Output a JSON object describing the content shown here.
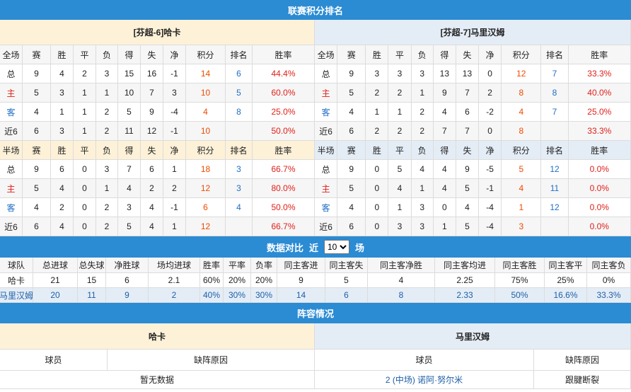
{
  "header": {
    "title": "联赛积分排名"
  },
  "standings": {
    "teams": [
      {
        "title": "[芬超-6]哈卡",
        "sections": [
          {
            "columns": [
              "全场",
              "赛",
              "胜",
              "平",
              "负",
              "得",
              "失",
              "净",
              "积分",
              "排名",
              "胜率"
            ],
            "rows": [
              [
                "总",
                "9",
                "4",
                "2",
                "3",
                "15",
                "16",
                "-1",
                "14",
                "6",
                "44.4%"
              ],
              [
                "主",
                "5",
                "3",
                "1",
                "1",
                "10",
                "7",
                "3",
                "10",
                "5",
                "60.0%"
              ],
              [
                "客",
                "4",
                "1",
                "1",
                "2",
                "5",
                "9",
                "-4",
                "4",
                "8",
                "25.0%"
              ],
              [
                "近6",
                "6",
                "3",
                "1",
                "2",
                "11",
                "12",
                "-1",
                "10",
                null,
                "50.0%"
              ]
            ]
          },
          {
            "columns": [
              "半场",
              "赛",
              "胜",
              "平",
              "负",
              "得",
              "失",
              "净",
              "积分",
              "排名",
              "胜率"
            ],
            "rows": [
              [
                "总",
                "9",
                "6",
                "0",
                "3",
                "7",
                "6",
                "1",
                "18",
                "3",
                "66.7%"
              ],
              [
                "主",
                "5",
                "4",
                "0",
                "1",
                "4",
                "2",
                "2",
                "12",
                "3",
                "80.0%"
              ],
              [
                "客",
                "4",
                "2",
                "0",
                "2",
                "3",
                "4",
                "-1",
                "6",
                "4",
                "50.0%"
              ],
              [
                "近6",
                "6",
                "4",
                "0",
                "2",
                "5",
                "4",
                "1",
                "12",
                null,
                "66.7%"
              ]
            ]
          }
        ]
      },
      {
        "title": "[芬超-7]马里汉姆",
        "sections": [
          {
            "columns": [
              "全场",
              "赛",
              "胜",
              "平",
              "负",
              "得",
              "失",
              "净",
              "积分",
              "排名",
              "胜率"
            ],
            "rows": [
              [
                "总",
                "9",
                "3",
                "3",
                "3",
                "13",
                "13",
                "0",
                "12",
                "7",
                "33.3%"
              ],
              [
                "主",
                "5",
                "2",
                "2",
                "1",
                "9",
                "7",
                "2",
                "8",
                "8",
                "40.0%"
              ],
              [
                "客",
                "4",
                "1",
                "1",
                "2",
                "4",
                "6",
                "-2",
                "4",
                "7",
                "25.0%"
              ],
              [
                "近6",
                "6",
                "2",
                "2",
                "2",
                "7",
                "7",
                "0",
                "8",
                null,
                "33.3%"
              ]
            ]
          },
          {
            "columns": [
              "半场",
              "赛",
              "胜",
              "平",
              "负",
              "得",
              "失",
              "净",
              "积分",
              "排名",
              "胜率"
            ],
            "rows": [
              [
                "总",
                "9",
                "0",
                "5",
                "4",
                "4",
                "9",
                "-5",
                "5",
                "12",
                "0.0%"
              ],
              [
                "主",
                "5",
                "0",
                "4",
                "1",
                "4",
                "5",
                "-1",
                "4",
                "11",
                "0.0%"
              ],
              [
                "客",
                "4",
                "0",
                "1",
                "3",
                "0",
                "4",
                "-4",
                "1",
                "12",
                "0.0%"
              ],
              [
                "近6",
                "6",
                "0",
                "3",
                "3",
                "1",
                "5",
                "-4",
                "3",
                null,
                "0.0%"
              ]
            ]
          }
        ]
      }
    ]
  },
  "comparison": {
    "title": "数据对比",
    "recent_prefix": "近",
    "recent_value": "10",
    "recent_suffix": "场",
    "columns": [
      "球队",
      "总进球",
      "总失球",
      "净胜球",
      "场均进球",
      "胜率",
      "平率",
      "负率",
      "同主客进",
      "同主客失",
      "同主客净胜",
      "同主客均进",
      "同主客胜",
      "同主客平",
      "同主客负"
    ],
    "rows": [
      [
        "哈卡",
        "21",
        "15",
        "6",
        "2.1",
        "60%",
        "20%",
        "20%",
        "9",
        "5",
        "4",
        "2.25",
        "75%",
        "25%",
        "0%"
      ],
      [
        "马里汉姆",
        "20",
        "11",
        "9",
        "2",
        "40%",
        "30%",
        "30%",
        "14",
        "6",
        "8",
        "2.33",
        "50%",
        "16.6%",
        "33.3%"
      ]
    ]
  },
  "lineup": {
    "title": "阵容情况",
    "teams": [
      {
        "name": "哈卡",
        "columns": [
          "球员",
          "缺阵原因"
        ],
        "rows": [
          [
            "暂无数据"
          ]
        ]
      },
      {
        "name": "马里汉姆",
        "columns": [
          "球员",
          "缺阵原因"
        ],
        "rows": [
          [
            "2 (中场) 诺阿·努尔米",
            "跟腱断裂"
          ]
        ]
      }
    ]
  }
}
